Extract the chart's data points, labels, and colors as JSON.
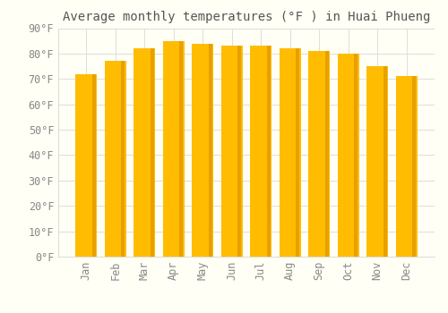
{
  "title": "Average monthly temperatures (°F ) in Huai Phueng",
  "months": [
    "Jan",
    "Feb",
    "Mar",
    "Apr",
    "May",
    "Jun",
    "Jul",
    "Aug",
    "Sep",
    "Oct",
    "Nov",
    "Dec"
  ],
  "values": [
    72,
    77,
    82,
    85,
    84,
    83,
    83,
    82,
    81,
    80,
    75,
    71
  ],
  "bar_color_face": "#FFBC00",
  "bar_color_right": "#E8A000",
  "background_color": "#FFFFF5",
  "grid_color": "#DDDDDD",
  "ylim": [
    0,
    90
  ],
  "yticks": [
    0,
    10,
    20,
    30,
    40,
    50,
    60,
    70,
    80,
    90
  ],
  "ytick_labels": [
    "0°F",
    "10°F",
    "20°F",
    "30°F",
    "40°F",
    "50°F",
    "60°F",
    "70°F",
    "80°F",
    "90°F"
  ],
  "title_fontsize": 10,
  "tick_fontsize": 8.5,
  "tick_color": "#888888",
  "title_color": "#555555",
  "bar_width": 0.75,
  "xlabel_rotation": 90
}
